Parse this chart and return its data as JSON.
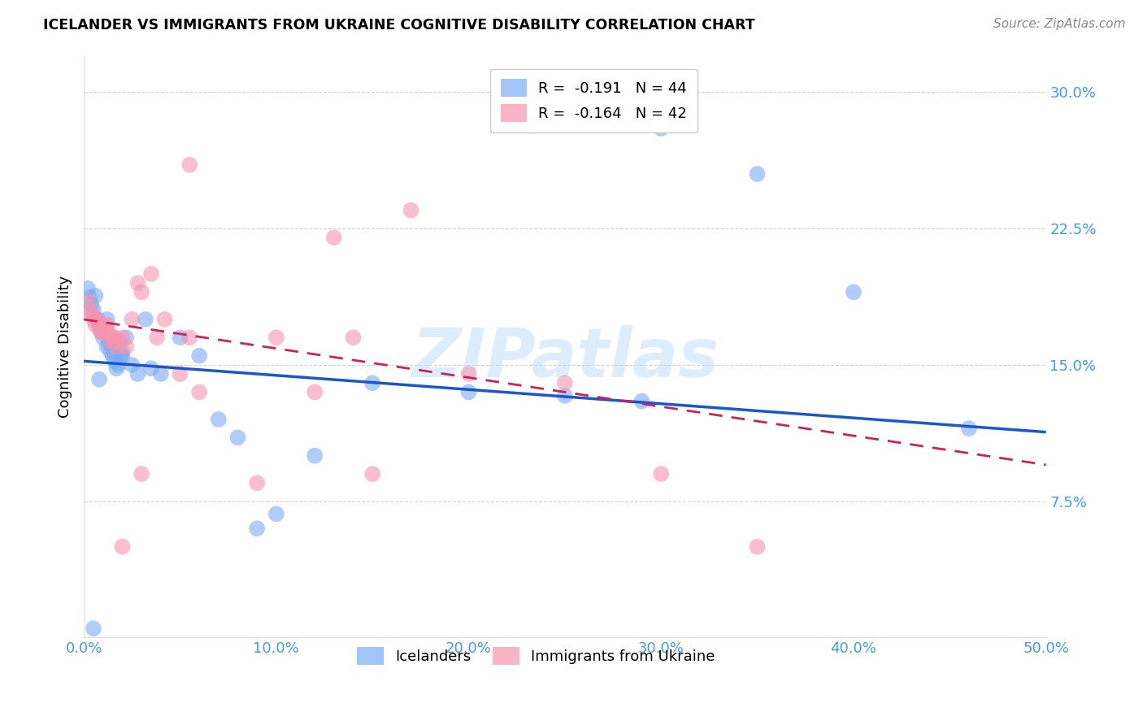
{
  "title": "ICELANDER VS IMMIGRANTS FROM UKRAINE COGNITIVE DISABILITY CORRELATION CHART",
  "source": "Source: ZipAtlas.com",
  "ylabel": "Cognitive Disability",
  "watermark": "ZIPatlas",
  "xlim": [
    0.0,
    0.5
  ],
  "ylim": [
    0.0,
    0.32
  ],
  "xticks": [
    0.0,
    0.1,
    0.2,
    0.3,
    0.4,
    0.5
  ],
  "yticks": [
    0.075,
    0.15,
    0.225,
    0.3
  ],
  "ytick_labels": [
    "7.5%",
    "15.0%",
    "22.5%",
    "30.0%"
  ],
  "xtick_labels": [
    "0.0%",
    "10.0%",
    "20.0%",
    "30.0%",
    "40.0%",
    "50.0%"
  ],
  "legend1_label": "R =  -0.191   N = 44",
  "legend2_label": "R =  -0.164   N = 42",
  "legend1_color": "#7aabf7",
  "legend2_color": "#f794b0",
  "icelanders_color": "#7aabf7",
  "ukraine_color": "#f794b0",
  "trendline1_color": "#1a56cc",
  "trendline2_color": "#cc2255",
  "blue_x": [
    0.002,
    0.003,
    0.004,
    0.005,
    0.006,
    0.007,
    0.008,
    0.009,
    0.01,
    0.011,
    0.012,
    0.013,
    0.014,
    0.015,
    0.016,
    0.017,
    0.018,
    0.019,
    0.02,
    0.022,
    0.025,
    0.028,
    0.032,
    0.035,
    0.04,
    0.05,
    0.06,
    0.07,
    0.08,
    0.09,
    0.1,
    0.12,
    0.15,
    0.2,
    0.25,
    0.29,
    0.3,
    0.35,
    0.4,
    0.46,
    0.005,
    0.008,
    0.012,
    0.02
  ],
  "blue_y": [
    0.192,
    0.187,
    0.183,
    0.18,
    0.188,
    0.175,
    0.172,
    0.168,
    0.165,
    0.17,
    0.175,
    0.162,
    0.157,
    0.155,
    0.152,
    0.148,
    0.15,
    0.155,
    0.157,
    0.165,
    0.15,
    0.145,
    0.175,
    0.148,
    0.145,
    0.165,
    0.155,
    0.12,
    0.11,
    0.06,
    0.068,
    0.1,
    0.14,
    0.135,
    0.133,
    0.13,
    0.28,
    0.255,
    0.19,
    0.115,
    0.005,
    0.142,
    0.16,
    0.155
  ],
  "pink_x": [
    0.002,
    0.003,
    0.004,
    0.005,
    0.006,
    0.007,
    0.008,
    0.009,
    0.01,
    0.011,
    0.012,
    0.013,
    0.014,
    0.015,
    0.016,
    0.017,
    0.018,
    0.02,
    0.022,
    0.025,
    0.028,
    0.03,
    0.035,
    0.038,
    0.042,
    0.05,
    0.055,
    0.06,
    0.09,
    0.1,
    0.12,
    0.13,
    0.15,
    0.17,
    0.2,
    0.25,
    0.3,
    0.35,
    0.055,
    0.02,
    0.03,
    0.14
  ],
  "pink_y": [
    0.185,
    0.18,
    0.178,
    0.175,
    0.172,
    0.175,
    0.17,
    0.168,
    0.168,
    0.172,
    0.172,
    0.168,
    0.163,
    0.165,
    0.165,
    0.16,
    0.163,
    0.165,
    0.16,
    0.175,
    0.195,
    0.19,
    0.2,
    0.165,
    0.175,
    0.145,
    0.165,
    0.135,
    0.085,
    0.165,
    0.135,
    0.22,
    0.09,
    0.235,
    0.145,
    0.14,
    0.09,
    0.05,
    0.26,
    0.05,
    0.09,
    0.165
  ],
  "trendline_blue_start": 0.152,
  "trendline_blue_end": 0.113,
  "trendline_pink_start": 0.175,
  "trendline_pink_end": 0.095
}
